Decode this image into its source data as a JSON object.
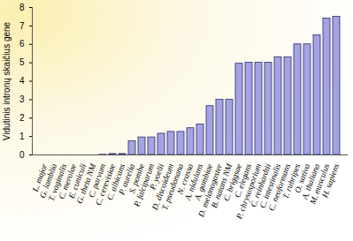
{
  "chart_data": {
    "type": "bar",
    "y_label": "Vidutinis intronų skaičius gene",
    "categories": [
      "L. major",
      "G. lamblia",
      "T. vaginalis",
      "C. merolae",
      "E. cuniculi",
      "G. theta NM",
      "C. parvum",
      "C. cerevisiae",
      "C. albicans",
      "P. aurelia",
      "S. pombe",
      "P. falciparum",
      "P. yoelii",
      "D. discoideum",
      "T. pseudonana",
      "N. crassa",
      "A. nidulans",
      "A. gambiae",
      "D. melanogaster",
      "B. natans NM",
      "C. briggsae",
      "C. elegans",
      "P. chrysosporium",
      "C. reinhardtii",
      "C. intestinalis",
      "C. neoformans",
      "T. rubripes",
      "O. sativa",
      "A. thaliana",
      "M. musculus",
      "H. sapiens"
    ],
    "values": [
      0,
      0,
      0,
      0,
      0,
      0,
      0.01,
      0.05,
      0.05,
      0.75,
      0.95,
      0.95,
      1.15,
      1.25,
      1.25,
      1.45,
      1.65,
      2.65,
      3.0,
      3.0,
      4.95,
      5.0,
      5.0,
      5.0,
      5.3,
      5.3,
      6.0,
      6.0,
      6.5,
      7.4,
      7.5
    ],
    "color": "#a4a4e4",
    "ylim": [
      0,
      8
    ],
    "yticks": [
      0,
      1,
      2,
      3,
      4,
      5,
      6,
      7,
      8
    ],
    "grid": false
  }
}
